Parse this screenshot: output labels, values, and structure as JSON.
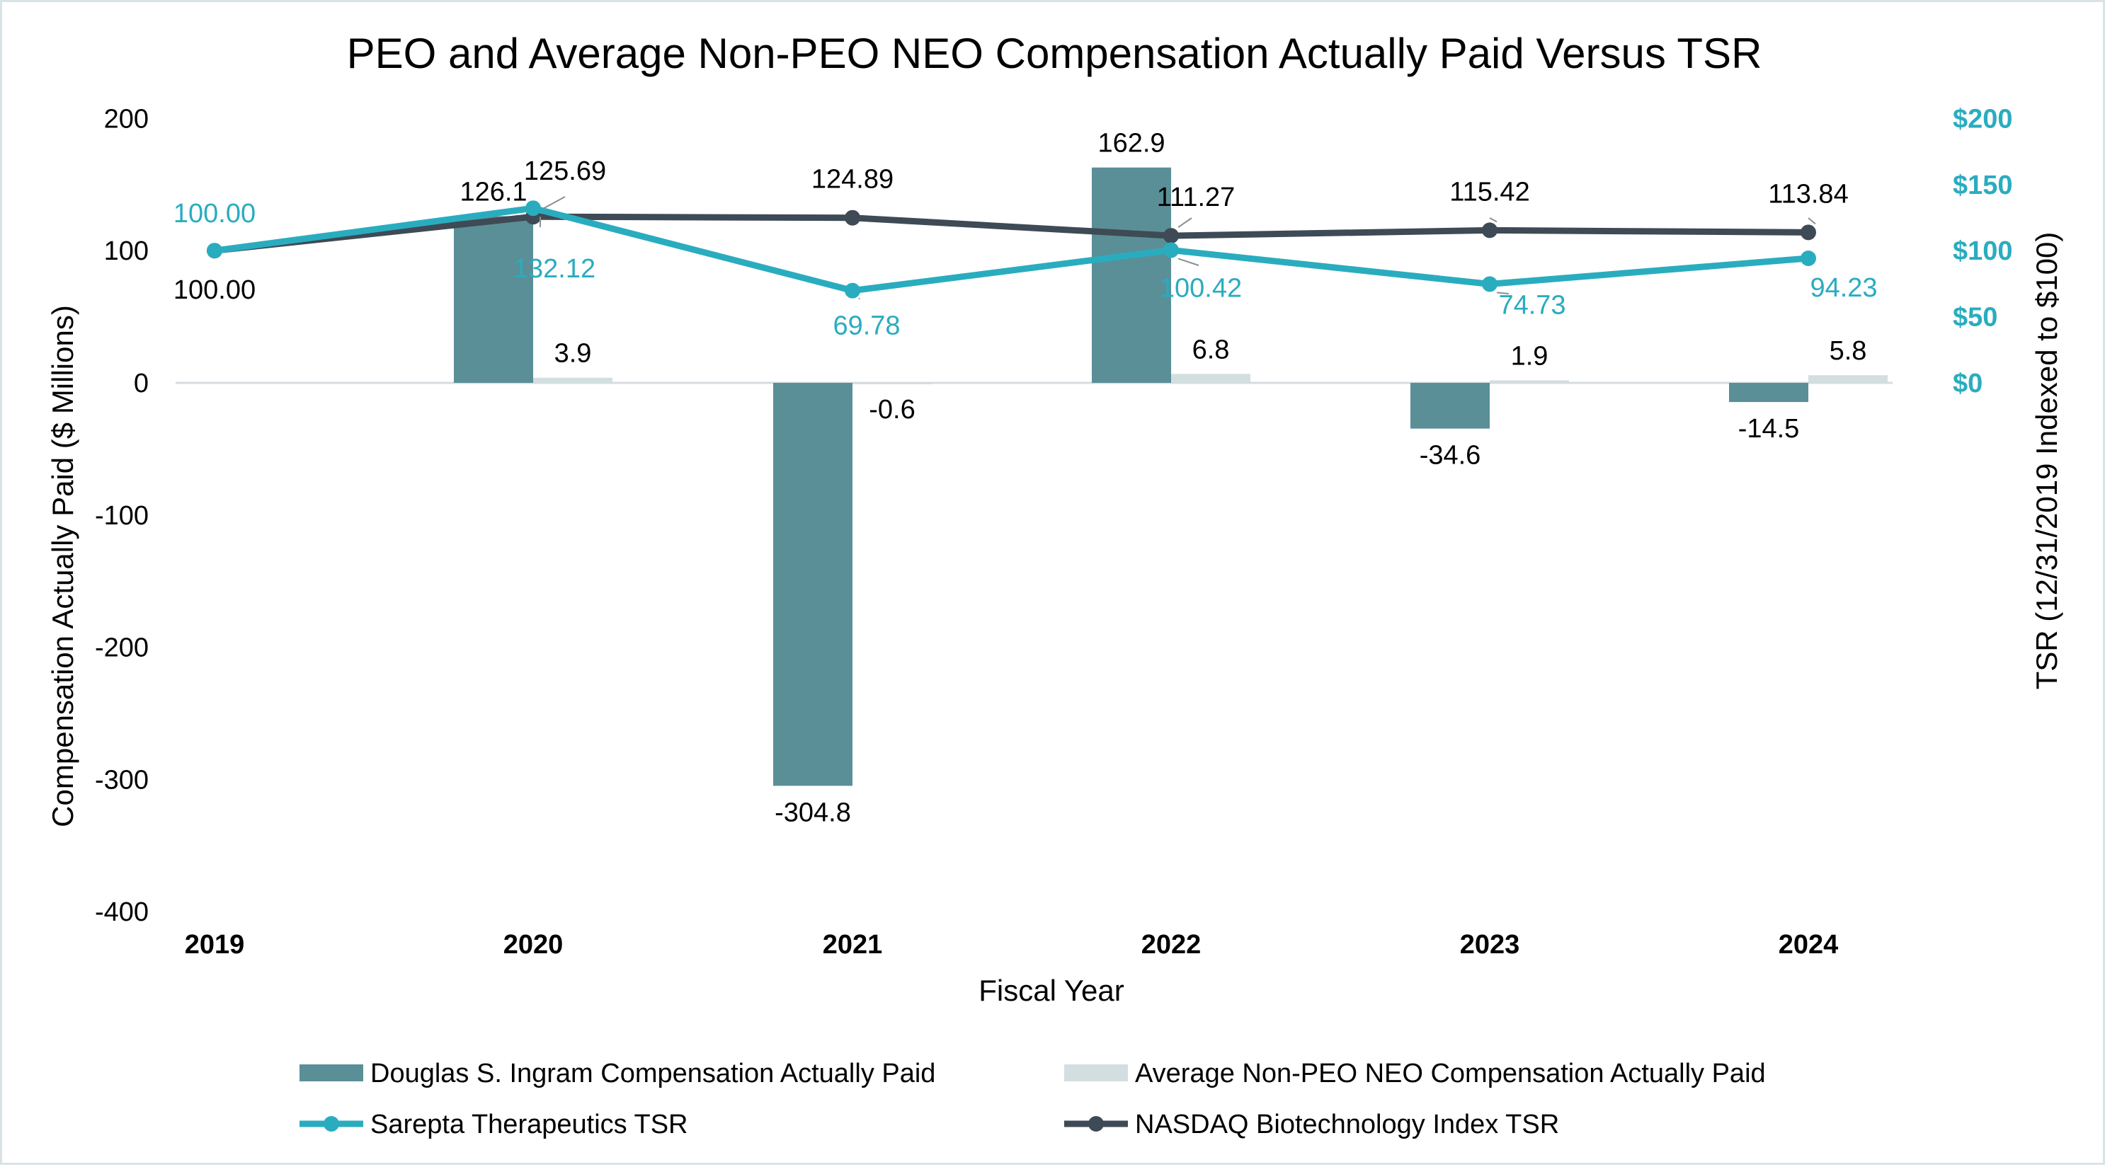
{
  "chart_data": {
    "type": "bar",
    "title": "PEO and Average Non-PEO NEO Compensation Actually Paid Versus TSR",
    "xlabel": "Fiscal Year",
    "ylabel": "Compensation Actually Paid ($ Millions)",
    "y2label": "TSR (12/31/2019 Indexed to $100)",
    "categories": [
      "2019",
      "2020",
      "2021",
      "2022",
      "2023",
      "2024"
    ],
    "ylim": [
      -400,
      200
    ],
    "y_ticks": [
      "200",
      "100",
      "0",
      "-100",
      "-200",
      "-300",
      "-400"
    ],
    "y2lim": [
      -400,
      200
    ],
    "y2_ticks": [
      "$200",
      "$150",
      "$100",
      "$50",
      "$0"
    ],
    "grid": false,
    "legend_position": "bottom",
    "colors": {
      "peo_bar": "#5a8f97",
      "neo_bar": "#d3dee1",
      "sarepta": "#2aacbf",
      "nasdaq": "#3e4a55",
      "y2_ticks": "#2aacbf"
    },
    "series": [
      {
        "name": "Douglas S. Ingram Compensation Actually Paid",
        "kind": "bar",
        "values": [
          null,
          126.1,
          -304.8,
          162.9,
          -34.6,
          -14.5
        ],
        "labels": [
          "",
          "126.1",
          "-304.8",
          "162.9",
          "-34.6",
          "-14.5"
        ]
      },
      {
        "name": "Average Non-PEO NEO Compensation Actually Paid",
        "kind": "bar",
        "values": [
          null,
          3.9,
          -0.6,
          6.8,
          1.9,
          5.8
        ],
        "labels": [
          "",
          "3.9",
          "-0.6",
          "6.8",
          "1.9",
          "5.8"
        ]
      },
      {
        "name": "Sarepta Therapeutics TSR",
        "kind": "line",
        "values": [
          100.0,
          132.12,
          69.78,
          100.42,
          74.73,
          94.23
        ],
        "labels": [
          "100.00",
          "132.12",
          "69.78",
          "100.42",
          "74.73",
          "94.23"
        ]
      },
      {
        "name": "NASDAQ Biotechnology Index TSR",
        "kind": "line",
        "values": [
          100.0,
          125.69,
          124.89,
          111.27,
          115.42,
          113.84
        ],
        "labels": [
          "100.00",
          "125.69",
          "124.89",
          "111.27",
          "115.42",
          "113.84"
        ]
      }
    ]
  }
}
